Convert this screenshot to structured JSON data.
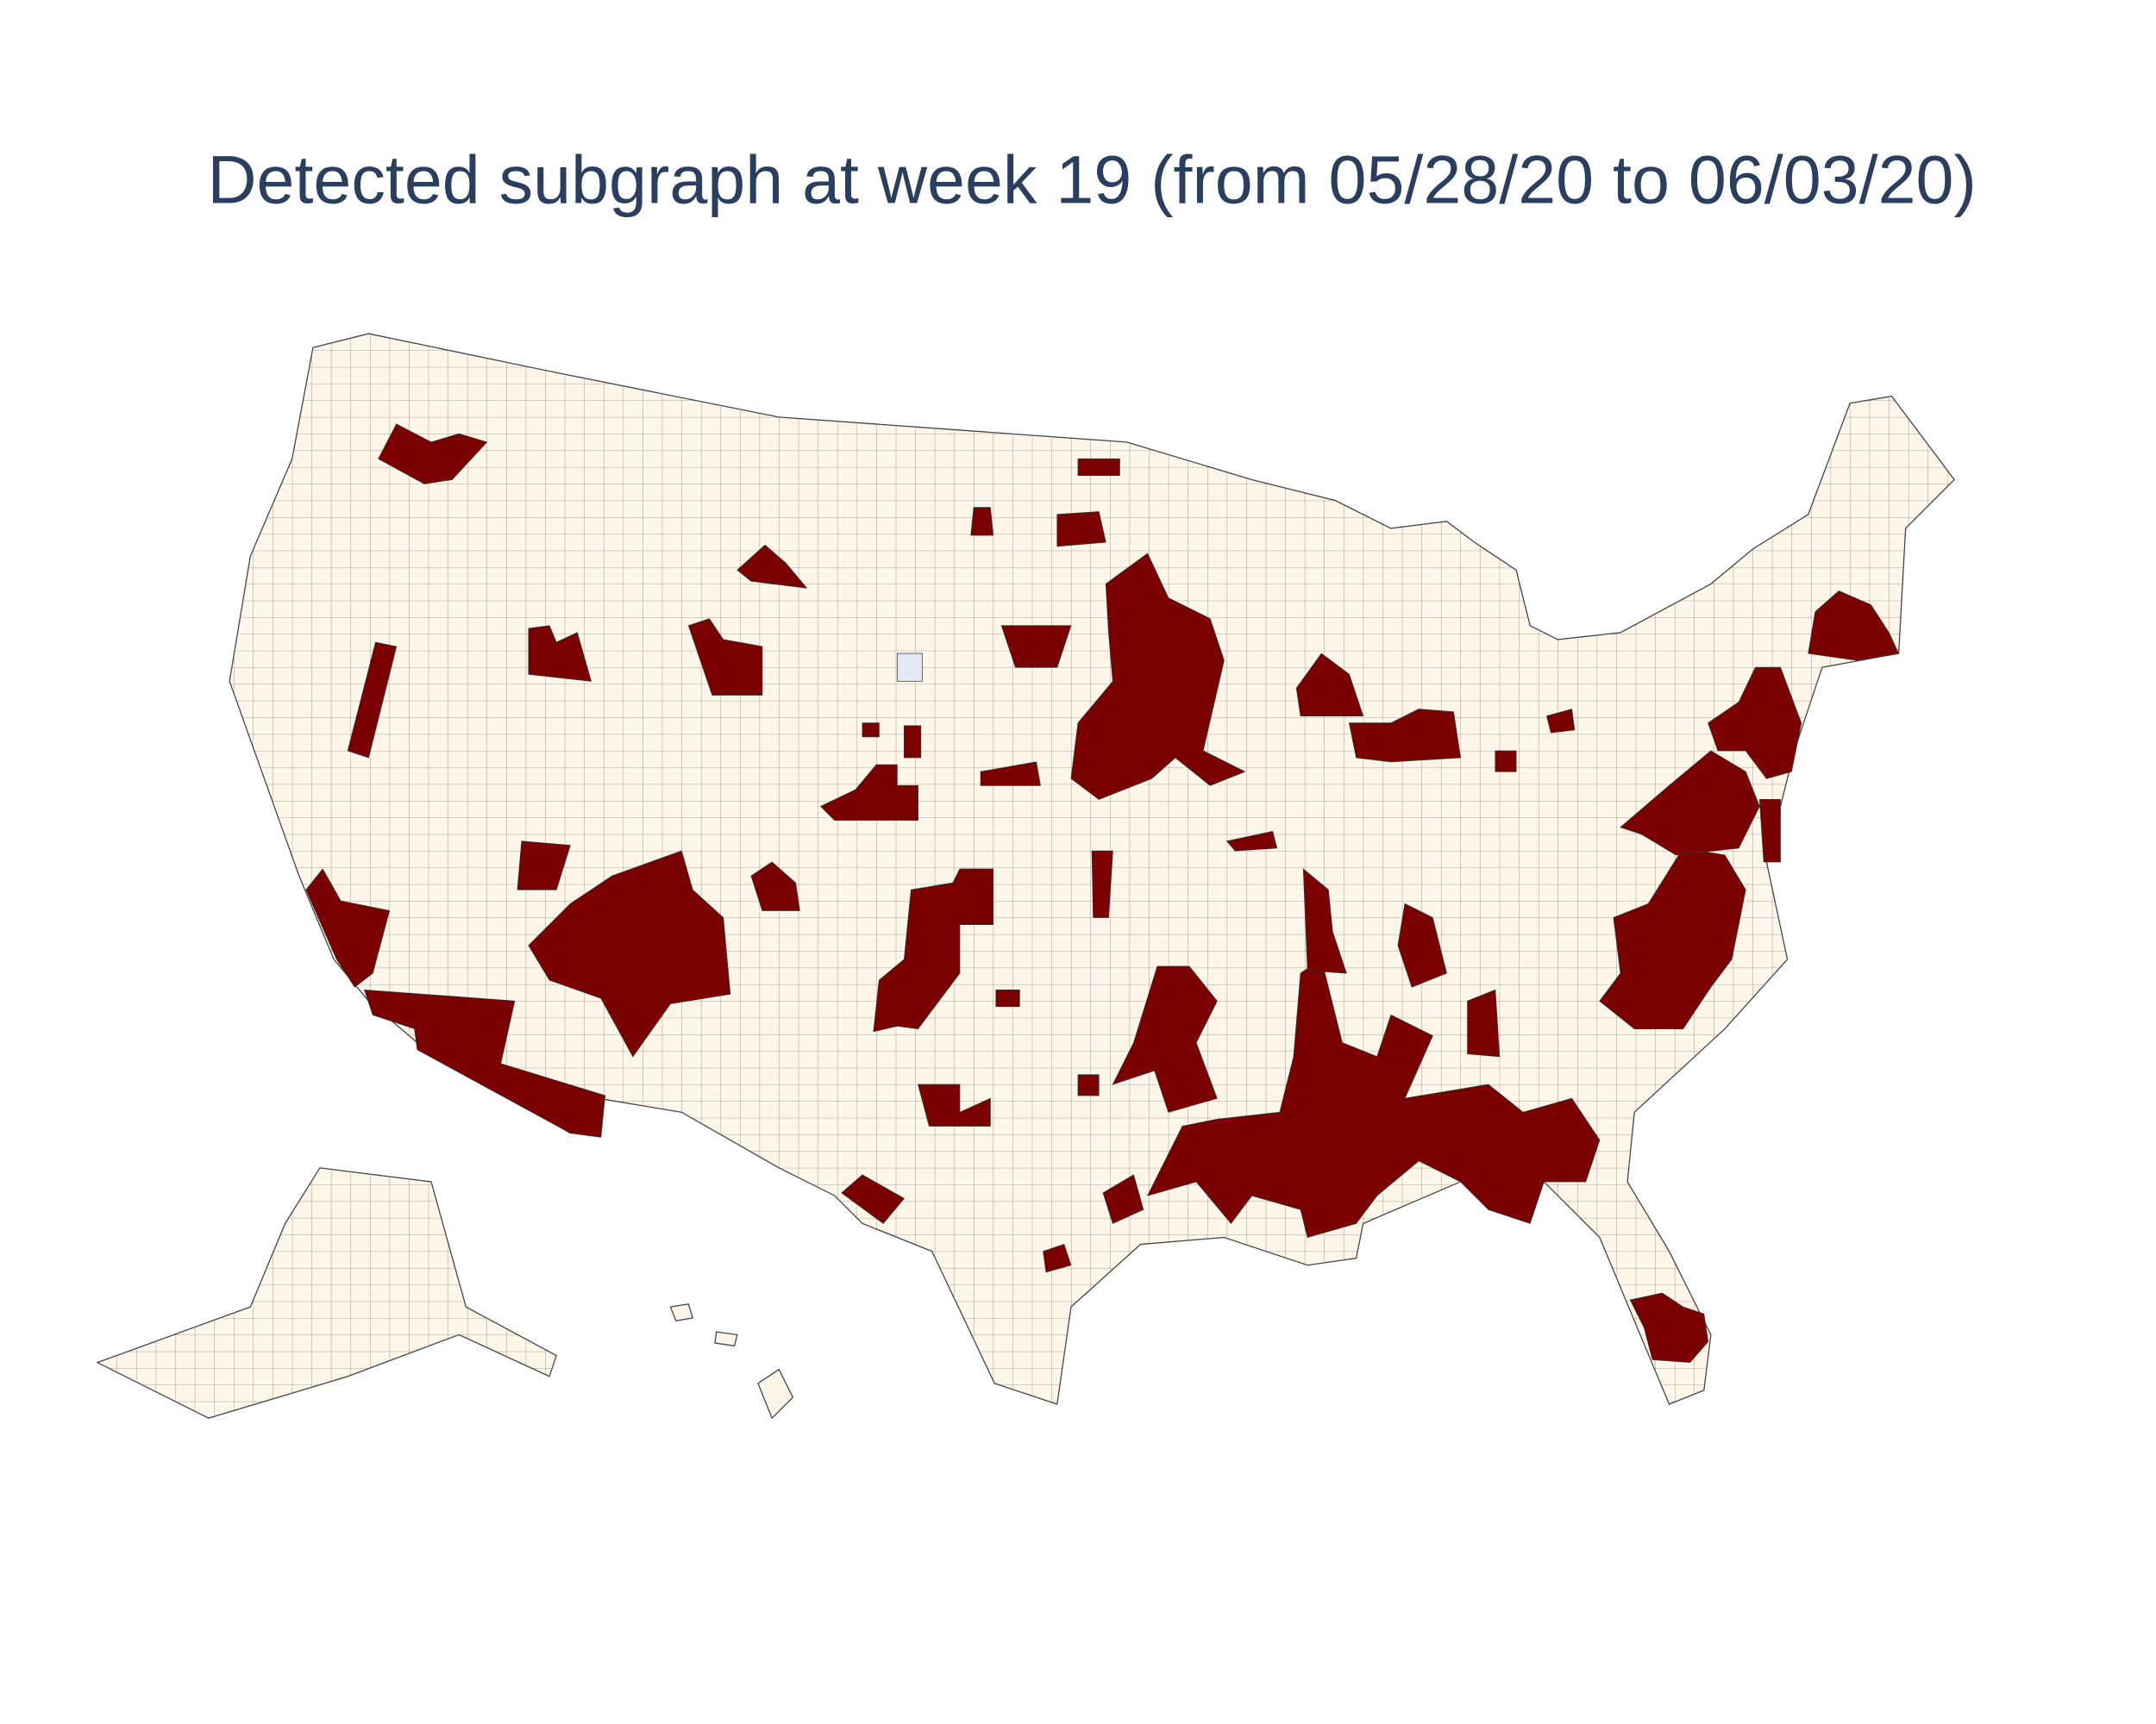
{
  "title": "Detected subgraph at week 19 (from 05/28/20 to 06/03/20)"
}
